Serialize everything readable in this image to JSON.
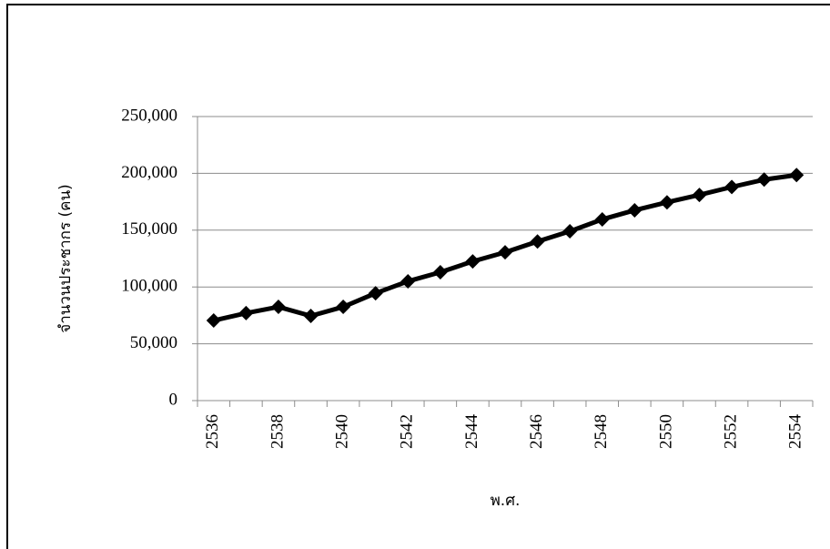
{
  "chart_data": {
    "type": "line",
    "y_label": "จำนวนประชากร (คน)",
    "x_label": "พ.ศ.",
    "categories": [
      "2536",
      null,
      "2538",
      null,
      "2540",
      null,
      "2542",
      null,
      "2544",
      null,
      "2546",
      null,
      "2548",
      null,
      "2550",
      null,
      "2552",
      null,
      "2554"
    ],
    "series": [
      {
        "name": null,
        "color": "#000000",
        "values": [
          70500,
          77000,
          82500,
          74500,
          82500,
          94500,
          105000,
          113000,
          122500,
          130500,
          140000,
          149000,
          159500,
          167500,
          174500,
          181000,
          188000,
          194500,
          198500
        ]
      }
    ],
    "ylim": [
      0,
      250000
    ],
    "yticks": [
      0,
      {
        "value": 50000,
        "label": "50,000"
      },
      {
        "value": 100000,
        "label": "100,000"
      },
      {
        "value": 150000,
        "label": "150,000"
      },
      {
        "value": 200000,
        "label": "200,000"
      },
      {
        "value": 250000,
        "label": "250,000"
      }
    ],
    "grid": true
  }
}
